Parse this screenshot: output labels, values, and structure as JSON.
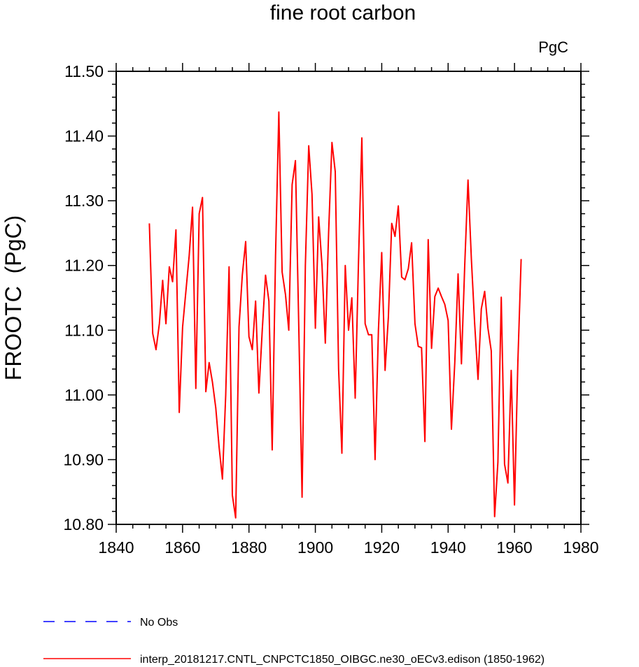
{
  "chart_data": {
    "type": "line",
    "title": "fine root carbon",
    "units_label": "PgC",
    "ylabel": "FROOTC  (PgC)",
    "xlabel": "",
    "xlim": [
      1840,
      1980
    ],
    "ylim": [
      10.8,
      11.5
    ],
    "xticks": [
      1840,
      1860,
      1880,
      1900,
      1920,
      1940,
      1960,
      1980
    ],
    "xtick_labels": [
      "1840",
      "1860",
      "1880",
      "1900",
      "1920",
      "1940",
      "1960",
      "1980"
    ],
    "yticks": [
      10.8,
      10.9,
      11.0,
      11.1,
      11.2,
      11.3,
      11.4,
      11.5
    ],
    "ytick_labels": [
      "10.80",
      "10.90",
      "11.00",
      "11.10",
      "11.20",
      "11.30",
      "11.40",
      "11.50"
    ],
    "legend": {
      "placement": "bottom-left",
      "entries": [
        {
          "name": "No Obs",
          "color": "#0000ff",
          "style": "dashed"
        },
        {
          "name": "interp_20181217.CNTL_CNPCTC1850_OIBGC.ne30_oECv3.edison (1850-1962)",
          "color": "#ff0000",
          "style": "solid"
        }
      ]
    },
    "series": [
      {
        "name": "interp_20181217.CNTL_CNPCTC1850_OIBGC.ne30_oECv3.edison (1850-1962)",
        "color": "#ff0000",
        "x": [
          1850,
          1851,
          1852,
          1853,
          1854,
          1855,
          1856,
          1857,
          1858,
          1859,
          1860,
          1861,
          1862,
          1863,
          1864,
          1865,
          1866,
          1867,
          1868,
          1869,
          1870,
          1871,
          1872,
          1873,
          1874,
          1875,
          1876,
          1877,
          1878,
          1879,
          1880,
          1881,
          1882,
          1883,
          1884,
          1885,
          1886,
          1887,
          1888,
          1889,
          1890,
          1891,
          1892,
          1893,
          1894,
          1895,
          1896,
          1897,
          1898,
          1899,
          1900,
          1901,
          1902,
          1903,
          1904,
          1905,
          1906,
          1907,
          1908,
          1909,
          1910,
          1911,
          1912,
          1913,
          1914,
          1915,
          1916,
          1917,
          1918,
          1919,
          1920,
          1921,
          1922,
          1923,
          1924,
          1925,
          1926,
          1927,
          1928,
          1929,
          1930,
          1931,
          1932,
          1933,
          1934,
          1935,
          1936,
          1937,
          1938,
          1939,
          1940,
          1941,
          1942,
          1943,
          1944,
          1945,
          1946,
          1947,
          1948,
          1949,
          1950,
          1951,
          1952,
          1953,
          1954,
          1955,
          1956,
          1957,
          1958,
          1959,
          1960,
          1961,
          1962
        ],
        "values": [
          11.265,
          11.095,
          11.07,
          11.11,
          11.177,
          11.11,
          11.198,
          11.175,
          11.255,
          10.973,
          11.105,
          11.16,
          11.215,
          11.29,
          11.01,
          11.28,
          11.305,
          11.005,
          11.05,
          11.02,
          10.98,
          10.92,
          10.87,
          11.0,
          11.198,
          10.845,
          10.81,
          11.105,
          11.185,
          11.237,
          11.09,
          11.07,
          11.145,
          11.003,
          11.1,
          11.185,
          11.145,
          10.915,
          11.215,
          11.437,
          11.19,
          11.155,
          11.1,
          11.325,
          11.362,
          11.105,
          10.842,
          11.2,
          11.385,
          11.31,
          11.103,
          11.275,
          11.2,
          11.08,
          11.25,
          11.39,
          11.345,
          11.04,
          10.91,
          11.2,
          11.1,
          11.15,
          10.995,
          11.205,
          11.397,
          11.11,
          11.093,
          11.093,
          10.9,
          11.1,
          11.22,
          11.038,
          11.12,
          11.265,
          11.245,
          11.292,
          11.182,
          11.178,
          11.195,
          11.235,
          11.11,
          11.075,
          11.073,
          10.928,
          11.24,
          11.072,
          11.152,
          11.165,
          11.152,
          11.14,
          11.115,
          10.947,
          11.05,
          11.187,
          11.048,
          11.2,
          11.332,
          11.21,
          11.11,
          11.024,
          11.133,
          11.16,
          11.103,
          11.068,
          10.812,
          10.896,
          11.151,
          10.893,
          10.864,
          11.038,
          10.83,
          11.05,
          11.21
        ]
      }
    ]
  }
}
